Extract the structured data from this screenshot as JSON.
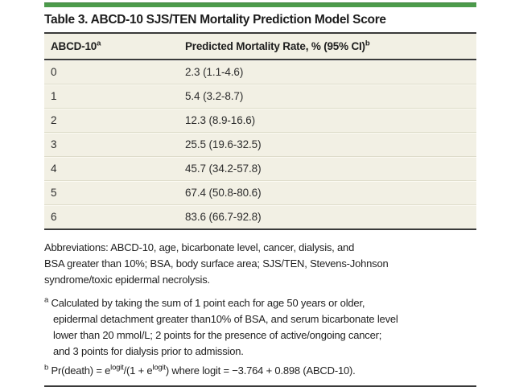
{
  "title": "Table 3. ABCD-10 SJS/TEN Mortality Prediction Model Score",
  "table": {
    "header": {
      "col1": "ABCD-10",
      "col1_sup": "a",
      "col2": "Predicted Mortality Rate, % (95% CI)",
      "col2_sup": "b"
    },
    "rows": [
      {
        "score": "0",
        "rate": "2.3 (1.1-4.6)"
      },
      {
        "score": "1",
        "rate": "5.4 (3.2-8.7)"
      },
      {
        "score": "2",
        "rate": "12.3 (8.9-16.6)"
      },
      {
        "score": "3",
        "rate": "25.5 (19.6-32.5)"
      },
      {
        "score": "4",
        "rate": "45.7 (34.2-57.8)"
      },
      {
        "score": "5",
        "rate": "67.4 (50.8-80.6)"
      },
      {
        "score": "6",
        "rate": "83.6 (66.7-92.8)"
      }
    ]
  },
  "abbreviations": {
    "lines": [
      "Abbreviations: ABCD-10, age, bicarbonate level, cancer, dialysis, and",
      "BSA greater than 10%; BSA, body surface area; SJS/TEN, Stevens-Johnson",
      "syndrome/toxic epidermal necrolysis."
    ]
  },
  "footnotes": {
    "a": {
      "marker": "a",
      "lines": [
        "Calculated by taking the sum of 1 point each for age 50 years or older,",
        "epidermal detachment greater than10% of BSA, and serum bicarbonate level",
        "lower than 20 mmol/L; 2 points for the presence of active/ongoing cancer;",
        "and 3 points for dialysis prior to admission."
      ]
    },
    "b": {
      "marker": "b",
      "seg0": "Pr(death) = e",
      "sup0": "logit",
      "seg1": "/(1 + e",
      "sup1": "logit",
      "seg2": ") where logit = −3.764 + 0.898 (ABCD-10)."
    }
  },
  "colors": {
    "accent_green": "#4c9b4b",
    "table_bg": "#f2f0e4",
    "rule_dark": "#3a3a3a"
  }
}
